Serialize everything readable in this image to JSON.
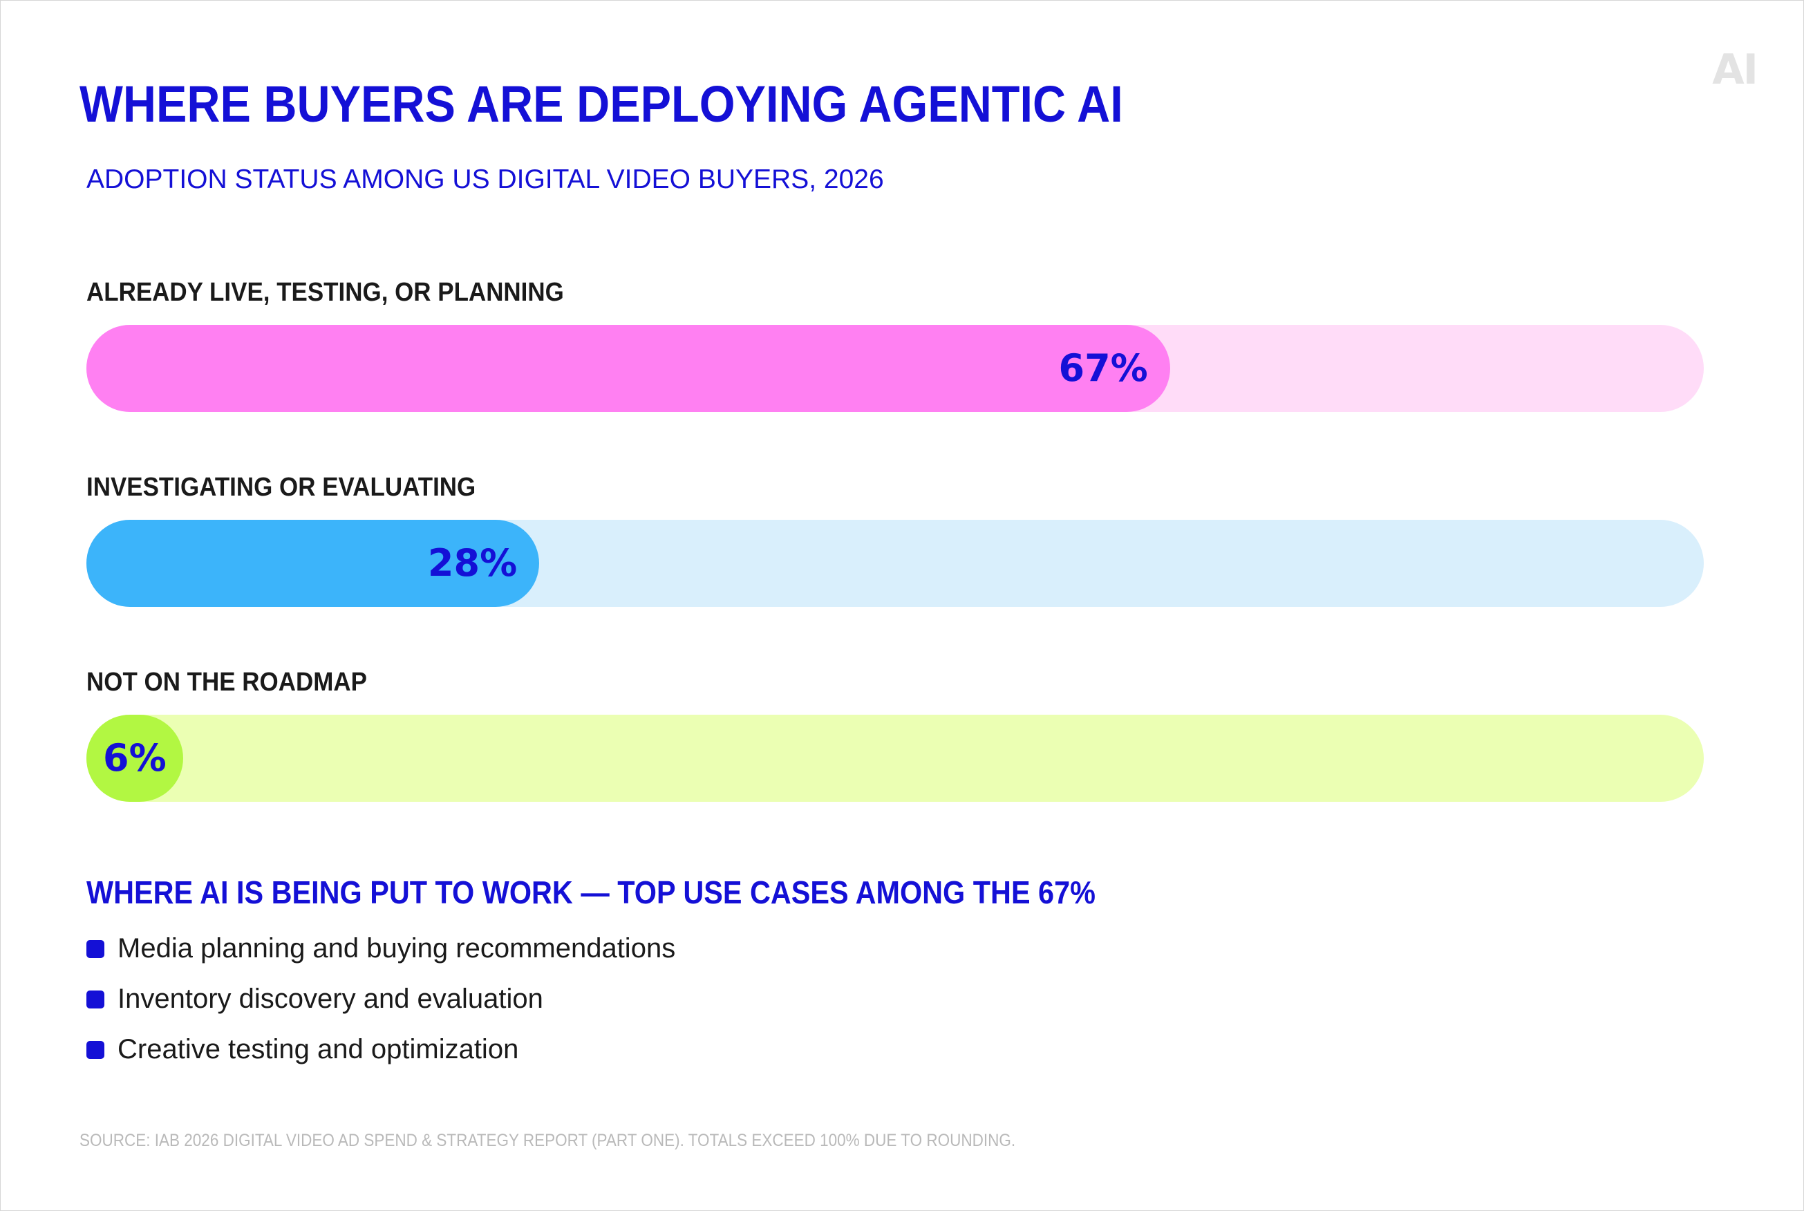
{
  "logo": "AI",
  "colors": {
    "brand_blue": "#1410d6",
    "label_dark": "#1a1a1a",
    "source_gray": "#b9b9b9"
  },
  "chart_data": {
    "type": "bar",
    "orientation": "horizontal",
    "title": "WHERE BUYERS ARE DEPLOYING AGENTIC AI",
    "subtitle": "ADOPTION STATUS AMONG US DIGITAL VIDEO BUYERS, 2026",
    "xlim": [
      0,
      100
    ],
    "unit": "%",
    "categories": [
      "ALREADY LIVE, TESTING, OR PLANNING",
      "INVESTIGATING OR EVALUATING",
      "NOT ON THE ROADMAP"
    ],
    "values": [
      67,
      28,
      6
    ],
    "value_labels": [
      "67%",
      "28%",
      "6%"
    ],
    "colors": [
      {
        "fill": "#ff80f2",
        "track": "#ffdcf8"
      },
      {
        "fill": "#3cb4fa",
        "track": "#d9effc"
      },
      {
        "fill": "#b2f742",
        "track": "#ebffb3"
      }
    ],
    "grid": false,
    "legend": "none"
  },
  "use_cases": {
    "title": "WHERE AI IS BEING PUT TO WORK — TOP USE CASES AMONG THE 67%",
    "items": [
      "Media planning and buying recommendations",
      "Inventory discovery and evaluation",
      "Creative testing and optimization"
    ]
  },
  "source": "SOURCE: IAB 2026 DIGITAL VIDEO AD SPEND & STRATEGY REPORT (PART ONE). TOTALS EXCEED 100% DUE TO ROUNDING."
}
